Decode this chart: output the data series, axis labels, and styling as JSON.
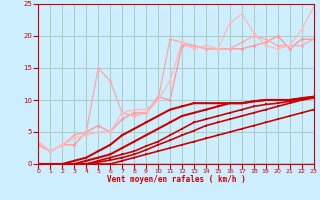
{
  "xlabel": "Vent moyen/en rafales ( km/h )",
  "xlim": [
    0,
    23
  ],
  "ylim": [
    0,
    25
  ],
  "xticks": [
    0,
    1,
    2,
    3,
    4,
    5,
    6,
    7,
    8,
    9,
    10,
    11,
    12,
    13,
    14,
    15,
    16,
    17,
    18,
    19,
    20,
    21,
    22,
    23
  ],
  "yticks": [
    0,
    5,
    10,
    15,
    20,
    25
  ],
  "bg_color": "#cceeff",
  "grid_color": "#aaccbb",
  "series": [
    {
      "x": [
        0,
        1,
        2,
        3,
        4,
        5,
        6,
        7,
        8,
        9,
        10,
        11,
        12,
        13,
        14,
        15,
        16,
        17,
        18,
        19,
        20,
        21,
        22,
        23
      ],
      "y": [
        0,
        0,
        0,
        0,
        0,
        0,
        0,
        0.5,
        1.0,
        1.5,
        2.0,
        2.5,
        3.0,
        3.5,
        4.0,
        4.5,
        5.0,
        5.5,
        6.0,
        6.5,
        7.0,
        7.5,
        8.0,
        8.5
      ],
      "color": "#cc0000",
      "lw": 1.2,
      "marker": "s",
      "ms": 1.5
    },
    {
      "x": [
        0,
        1,
        2,
        3,
        4,
        5,
        6,
        7,
        8,
        9,
        10,
        11,
        12,
        13,
        14,
        15,
        16,
        17,
        18,
        19,
        20,
        21,
        22,
        23
      ],
      "y": [
        0,
        0,
        0,
        0,
        0,
        0.3,
        0.6,
        1.0,
        1.5,
        2.2,
        3.0,
        3.7,
        4.5,
        5.2,
        6.0,
        6.5,
        7.0,
        7.5,
        8.0,
        8.5,
        9.0,
        9.5,
        10.0,
        10.5
      ],
      "color": "#cc0000",
      "lw": 1.2,
      "marker": "s",
      "ms": 1.5
    },
    {
      "x": [
        0,
        1,
        2,
        3,
        4,
        5,
        6,
        7,
        8,
        9,
        10,
        11,
        12,
        13,
        14,
        15,
        16,
        17,
        18,
        19,
        20,
        21,
        22,
        23
      ],
      "y": [
        0,
        0,
        0,
        0,
        0,
        0.5,
        1.0,
        1.5,
        2.0,
        2.8,
        3.5,
        4.5,
        5.5,
        6.5,
        7.0,
        7.5,
        8.0,
        8.5,
        9.0,
        9.3,
        9.5,
        9.8,
        10.0,
        10.3
      ],
      "color": "#cc0000",
      "lw": 1.2,
      "marker": "s",
      "ms": 1.5
    },
    {
      "x": [
        0,
        1,
        2,
        3,
        4,
        5,
        6,
        7,
        8,
        9,
        10,
        11,
        12,
        13,
        14,
        15,
        16,
        17,
        18,
        19,
        20,
        21,
        22,
        23
      ],
      "y": [
        0,
        0,
        0,
        0,
        0.5,
        1.0,
        1.5,
        2.5,
        3.5,
        4.5,
        5.5,
        6.5,
        7.5,
        8.0,
        8.5,
        9.0,
        9.5,
        9.5,
        9.8,
        10.0,
        10.0,
        10.0,
        10.2,
        10.5
      ],
      "color": "#cc0000",
      "lw": 1.5,
      "marker": "s",
      "ms": 1.8
    },
    {
      "x": [
        0,
        1,
        2,
        3,
        4,
        5,
        6,
        7,
        8,
        9,
        10,
        11,
        12,
        13,
        14,
        15,
        16,
        17,
        18,
        19,
        20,
        21,
        22,
        23
      ],
      "y": [
        0,
        0,
        0,
        0.5,
        1.0,
        2.0,
        3.0,
        4.5,
        5.5,
        6.5,
        7.5,
        8.5,
        9.0,
        9.5,
        9.5,
        9.5,
        9.5,
        9.5,
        9.8,
        10.0,
        10.0,
        10.0,
        10.3,
        10.5
      ],
      "color": "#cc0000",
      "lw": 1.5,
      "marker": "s",
      "ms": 1.8
    },
    {
      "x": [
        0,
        1,
        2,
        3,
        4,
        5,
        6,
        7,
        8,
        9,
        10,
        11,
        12,
        13,
        14,
        15,
        16,
        17,
        18,
        19,
        20,
        21,
        22,
        23
      ],
      "y": [
        3,
        2,
        3,
        3,
        5,
        6,
        5,
        7,
        8,
        8,
        10.5,
        10,
        18.5,
        18.5,
        18,
        18,
        18,
        18,
        18.5,
        19,
        20,
        18,
        19.5,
        19.5
      ],
      "color": "#ff9999",
      "lw": 1.0,
      "marker": "D",
      "ms": 2.0
    },
    {
      "x": [
        0,
        1,
        2,
        3,
        4,
        5,
        6,
        7,
        8,
        9,
        10,
        11,
        12,
        13,
        14,
        15,
        16,
        17,
        18,
        19,
        20,
        21,
        22,
        23
      ],
      "y": [
        3,
        2,
        3,
        4.5,
        5,
        15,
        13,
        8,
        7.5,
        8,
        10,
        19.5,
        19,
        18.5,
        18,
        18,
        18,
        19,
        20,
        19.5,
        18.5,
        18.5,
        18.5,
        19.5
      ],
      "color": "#ffaaaa",
      "lw": 1.0,
      "marker": "D",
      "ms": 2.0
    },
    {
      "x": [
        0,
        1,
        2,
        3,
        4,
        5,
        6,
        7,
        8,
        9,
        10,
        11,
        12,
        13,
        14,
        15,
        16,
        17,
        18,
        19,
        20,
        21,
        22,
        23
      ],
      "y": [
        3.5,
        2,
        3,
        4,
        4.5,
        5,
        5,
        8,
        8.5,
        8.5,
        10,
        13,
        19,
        18,
        18.5,
        18,
        22,
        23.5,
        20.5,
        18.5,
        18,
        18.5,
        21,
        24.5
      ],
      "color": "#ffbbbb",
      "lw": 1.0,
      "marker": "D",
      "ms": 2.0
    }
  ]
}
